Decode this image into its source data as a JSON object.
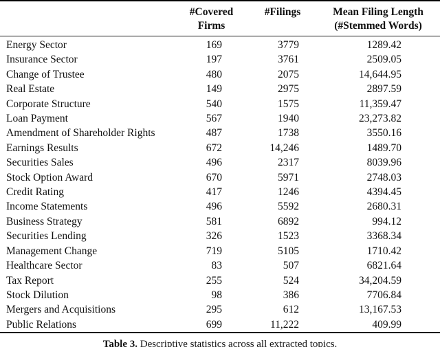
{
  "table": {
    "headers": [
      {
        "line1": "",
        "line2": ""
      },
      {
        "line1": "#Covered",
        "line2": "Firms"
      },
      {
        "line1": "#Filings",
        "line2": ""
      },
      {
        "line1": "Mean Filing Length",
        "line2": "(#Stemmed Words)"
      }
    ],
    "rows": [
      {
        "topic": "Energy Sector",
        "covered_firms": "169",
        "filings": "3779",
        "mean_filing_length": "1289.42"
      },
      {
        "topic": "Insurance Sector",
        "covered_firms": "197",
        "filings": "3761",
        "mean_filing_length": "2509.05"
      },
      {
        "topic": "Change of Trustee",
        "covered_firms": "480",
        "filings": "2075",
        "mean_filing_length": "14,644.95"
      },
      {
        "topic": "Real Estate",
        "covered_firms": "149",
        "filings": "2975",
        "mean_filing_length": "2897.59"
      },
      {
        "topic": "Corporate Structure",
        "covered_firms": "540",
        "filings": "1575",
        "mean_filing_length": "11,359.47"
      },
      {
        "topic": "Loan Payment",
        "covered_firms": "567",
        "filings": "1940",
        "mean_filing_length": "23,273.82"
      },
      {
        "topic": "Amendment of Shareholder Rights",
        "covered_firms": "487",
        "filings": "1738",
        "mean_filing_length": "3550.16"
      },
      {
        "topic": "Earnings Results",
        "covered_firms": "672",
        "filings": "14,246",
        "mean_filing_length": "1489.70"
      },
      {
        "topic": "Securities Sales",
        "covered_firms": "496",
        "filings": "2317",
        "mean_filing_length": "8039.96"
      },
      {
        "topic": "Stock Option Award",
        "covered_firms": "670",
        "filings": "5971",
        "mean_filing_length": "2748.03"
      },
      {
        "topic": "Credit Rating",
        "covered_firms": "417",
        "filings": "1246",
        "mean_filing_length": "4394.45"
      },
      {
        "topic": "Income Statements",
        "covered_firms": "496",
        "filings": "5592",
        "mean_filing_length": "2680.31"
      },
      {
        "topic": "Business Strategy",
        "covered_firms": "581",
        "filings": "6892",
        "mean_filing_length": "994.12"
      },
      {
        "topic": "Securities Lending",
        "covered_firms": "326",
        "filings": "1523",
        "mean_filing_length": "3368.34"
      },
      {
        "topic": "Management Change",
        "covered_firms": "719",
        "filings": "5105",
        "mean_filing_length": "1710.42"
      },
      {
        "topic": "Healthcare Sector",
        "covered_firms": "83",
        "filings": "507",
        "mean_filing_length": "6821.64"
      },
      {
        "topic": "Tax Report",
        "covered_firms": "255",
        "filings": "524",
        "mean_filing_length": "34,204.59"
      },
      {
        "topic": "Stock Dilution",
        "covered_firms": "98",
        "filings": "386",
        "mean_filing_length": "7706.84"
      },
      {
        "topic": "Mergers and Acquisitions",
        "covered_firms": "295",
        "filings": "612",
        "mean_filing_length": "13,167.53"
      },
      {
        "topic": "Public Relations",
        "covered_firms": "699",
        "filings": "11,222",
        "mean_filing_length": "409.99"
      }
    ]
  },
  "caption": {
    "label": "Table 3.",
    "text": "Descriptive statistics across all extracted topics."
  },
  "colors": {
    "text": "#111111",
    "rule": "#000000",
    "background": "#ffffff"
  }
}
